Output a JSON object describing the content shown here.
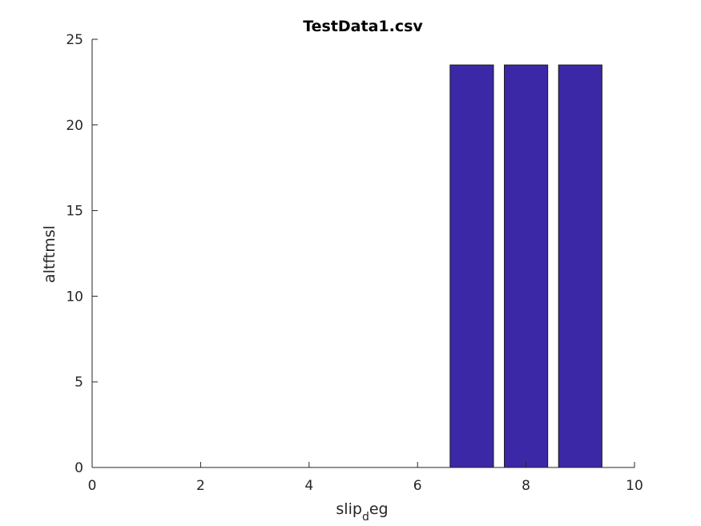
{
  "chart_data": {
    "type": "bar",
    "title": "TestData1.csv",
    "xlabel": "slip_deg",
    "xlabel_main": "slip",
    "xlabel_sub": "d",
    "xlabel_tail": "eg",
    "ylabel": "altftmsl",
    "xlim": [
      0,
      10
    ],
    "ylim": [
      0,
      25
    ],
    "xticks": [
      "0",
      "2",
      "4",
      "6",
      "8",
      "10"
    ],
    "yticks": [
      "0",
      "5",
      "10",
      "15",
      "20",
      "25"
    ],
    "bar_color": "#3b28a6",
    "edge_color": "#1a1a1a",
    "bars": [
      {
        "x_start": 6.6,
        "x_end": 7.4,
        "value": 23.5
      },
      {
        "x_start": 7.6,
        "x_end": 8.4,
        "value": 23.5
      },
      {
        "x_start": 8.6,
        "x_end": 9.4,
        "value": 23.5
      }
    ],
    "grid": false,
    "legend": "none"
  }
}
